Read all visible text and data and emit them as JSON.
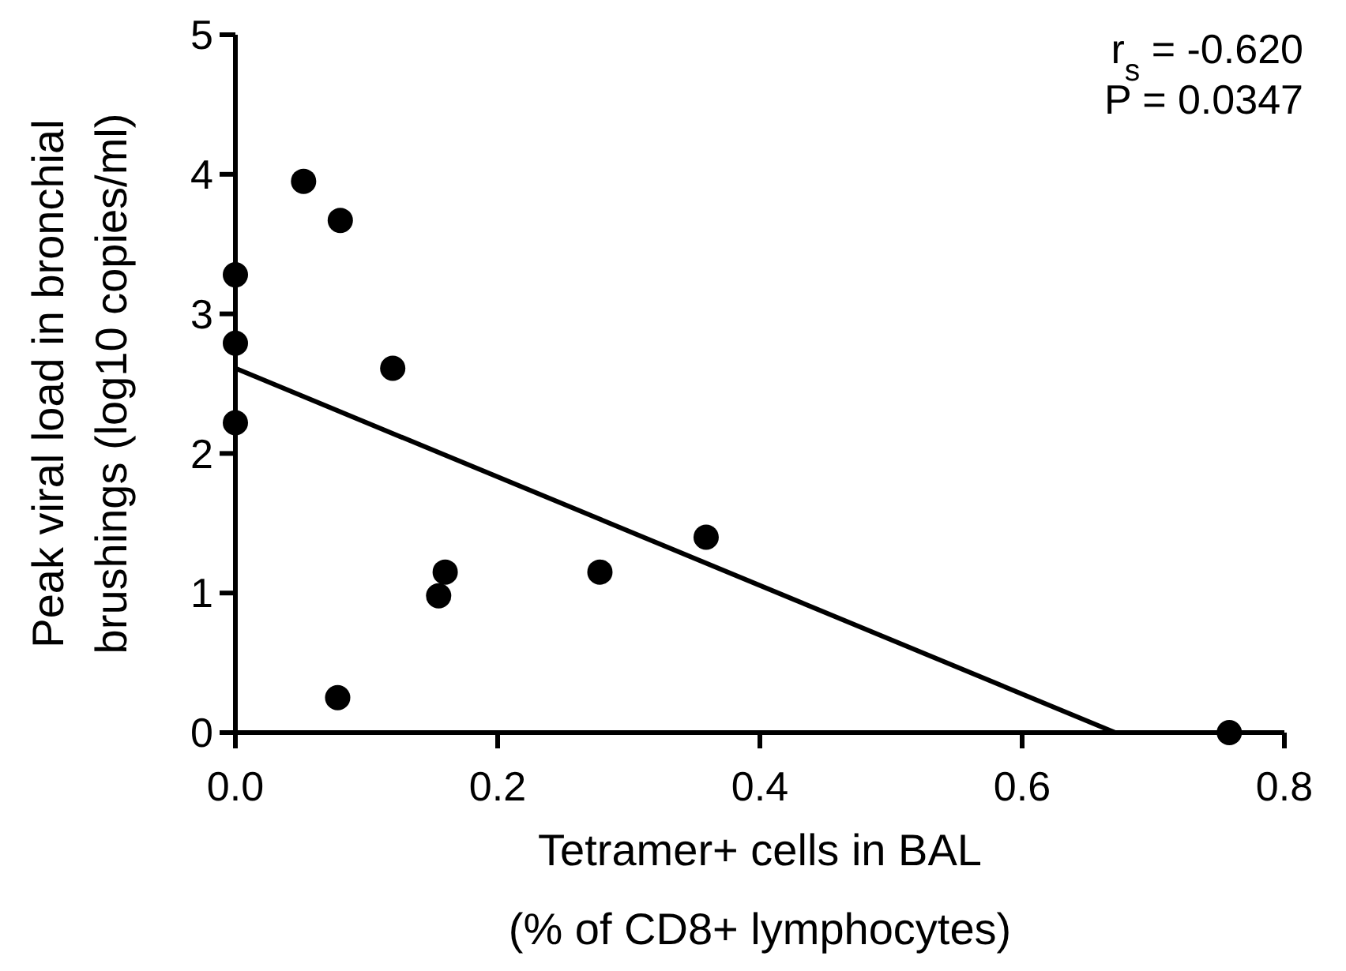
{
  "chart_data": {
    "type": "scatter",
    "xlabel": "Tetramer+ cells in BAL\n(% of CD8+ lymphocytes)",
    "ylabel": "Peak viral load in bronchial\nbrushings (log10 copies/ml)",
    "x": [
      0,
      0,
      0,
      0.052,
      0.08,
      0.12,
      0.078,
      0.155,
      0.16,
      0.278,
      0.359,
      0.758
    ],
    "xlim": [
      0,
      0.8
    ],
    "ylim": [
      0,
      5
    ],
    "xticks": [
      {
        "value": 0,
        "label": "0.0"
      },
      0.2,
      0.4,
      0.6,
      0.8
    ],
    "yticks": [
      0,
      1,
      2,
      3,
      4,
      5
    ],
    "grid": false,
    "series": [
      {
        "marker": "circle",
        "color": "#000000",
        "values": [
          2.22,
          2.79,
          3.28,
          3.95,
          3.67,
          2.61,
          0.25,
          0.98,
          1.15,
          1.15,
          1.4,
          0
        ]
      },
      {
        "type": "line",
        "color": "#000000",
        "x": [
          0,
          0.671
        ],
        "values": [
          2.61,
          0
        ]
      }
    ],
    "annotations": [
      "r$_{s}$ = -0.620",
      "P = 0.0347"
    ]
  }
}
